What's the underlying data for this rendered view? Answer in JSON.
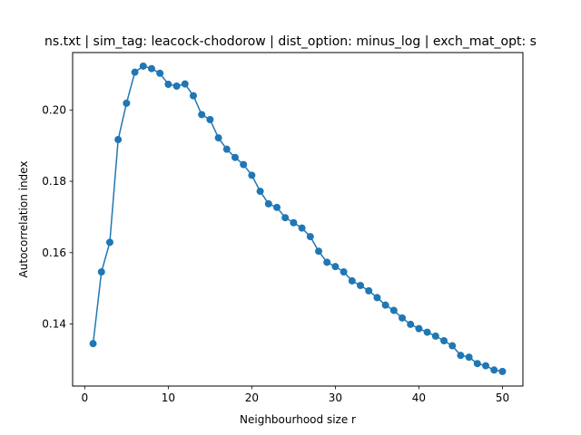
{
  "chart_data": {
    "type": "line",
    "title": "ns.txt | sim_tag: leacock-chodorow | dist_option: minus_log | exch_mat_opt: s",
    "xlabel": "Neighbourhood size r",
    "ylabel": "Autocorrelation index",
    "xlim": [
      -1.45,
      52.45
    ],
    "ylim": [
      0.1226,
      0.2161
    ],
    "xticks": [
      0,
      10,
      20,
      30,
      40,
      50
    ],
    "xtick_labels": [
      "0",
      "10",
      "20",
      "30",
      "40",
      "50"
    ],
    "yticks": [
      0.14,
      0.16,
      0.18,
      0.2
    ],
    "ytick_labels": [
      "0.14",
      "0.16",
      "0.18",
      "0.20"
    ],
    "grid": false,
    "series": [
      {
        "color": "#1f77b4",
        "marker": "circle",
        "x": [
          1,
          2,
          3,
          4,
          5,
          6,
          7,
          8,
          9,
          10,
          11,
          12,
          13,
          14,
          15,
          16,
          17,
          18,
          19,
          20,
          21,
          22,
          23,
          24,
          25,
          26,
          27,
          28,
          29,
          30,
          31,
          32,
          33,
          34,
          35,
          36,
          37,
          38,
          39,
          40,
          41,
          42,
          43,
          44,
          45,
          46,
          47,
          48,
          49,
          50
        ],
        "y": [
          0.1345,
          0.1546,
          0.1629,
          0.1917,
          0.2019,
          0.2106,
          0.2123,
          0.2116,
          0.2103,
          0.2072,
          0.2067,
          0.2073,
          0.204,
          0.1987,
          0.1973,
          0.1922,
          0.189,
          0.1867,
          0.1847,
          0.1817,
          0.1772,
          0.1737,
          0.1727,
          0.1698,
          0.1684,
          0.1669,
          0.1645,
          0.1604,
          0.1573,
          0.1561,
          0.1546,
          0.1521,
          0.1508,
          0.1493,
          0.1474,
          0.1453,
          0.1438,
          0.1417,
          0.1399,
          0.1387,
          0.1377,
          0.1366,
          0.1353,
          0.1339,
          0.1312,
          0.1307,
          0.1289,
          0.1283,
          0.1271,
          0.1267
        ]
      }
    ]
  }
}
